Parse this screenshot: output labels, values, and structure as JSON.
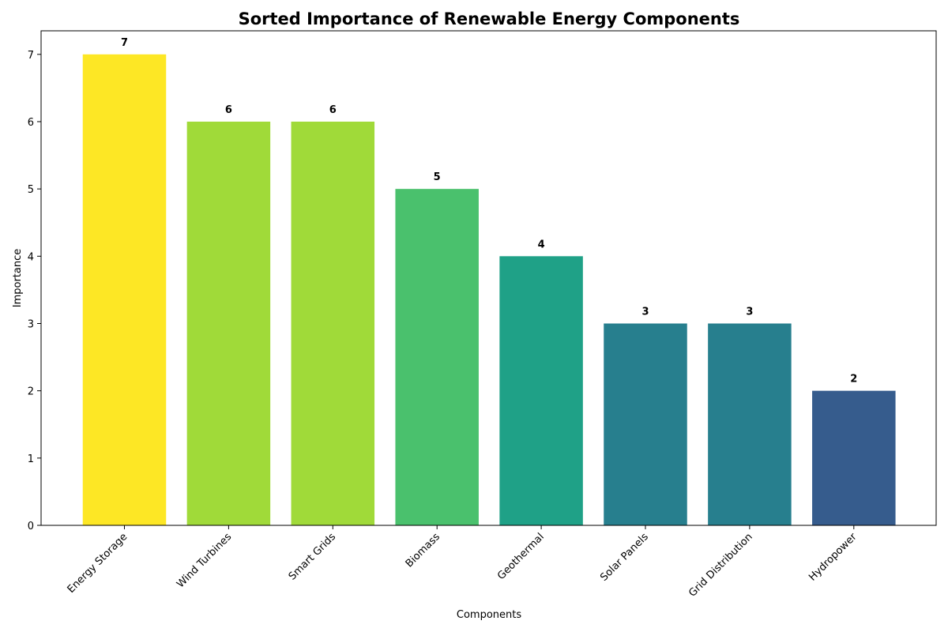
{
  "chart_data": {
    "type": "bar",
    "title": "Sorted Importance of Renewable Energy Components",
    "xlabel": "Components",
    "ylabel": "Importance",
    "categories": [
      "Energy Storage",
      "Wind Turbines",
      "Smart Grids",
      "Biomass",
      "Geothermal",
      "Solar Panels",
      "Grid Distribution",
      "Hydropower"
    ],
    "values": [
      7,
      6,
      6,
      5,
      4,
      3,
      3,
      2
    ],
    "colors": [
      "#fde725",
      "#a0da39",
      "#a0da39",
      "#4ac16d",
      "#1fa187",
      "#277f8e",
      "#277f8e",
      "#365c8d"
    ],
    "ylim": [
      0,
      7.35
    ],
    "yticks": [
      0,
      1,
      2,
      3,
      4,
      5,
      6,
      7
    ],
    "grid": false,
    "legend": "none"
  }
}
